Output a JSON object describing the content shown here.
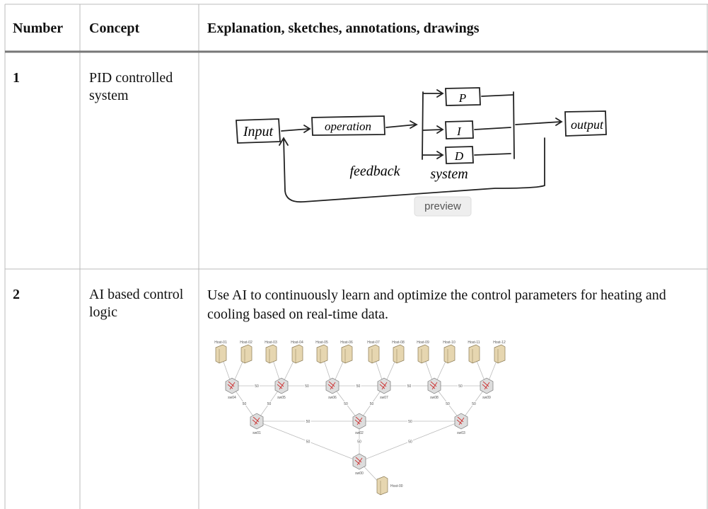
{
  "table": {
    "header": [
      "Number",
      "Concept",
      "Explanation, sketches, annotations, drawings"
    ],
    "rows": [
      {
        "number": "1",
        "concept": "PID controlled system",
        "sketch": {
          "labels": [
            "Input",
            "operation",
            "P",
            "I",
            "D",
            "output",
            "feedback",
            "system"
          ],
          "tooltip": "preview"
        }
      },
      {
        "number": "2",
        "concept": "AI based control logic",
        "text": "Use AI to continuously learn and optimize the control parameters for heating and cooling based on real-time data.",
        "diagram": {
          "nodes": [
            "Host-01",
            "Host-02",
            "Host-03",
            "Host-04",
            "Host-05",
            "Host-06",
            "Host-07",
            "Host-08",
            "Host-09",
            "Host-10",
            "Host-11",
            "Host-12",
            "sw04",
            "sw05",
            "sw06",
            "sw07",
            "sw08",
            "sw09",
            "sw01",
            "sw02",
            "sw03",
            "sw00",
            "Host-00"
          ],
          "links": [
            {
              "from": "Host-01",
              "to": "sw04"
            },
            {
              "from": "Host-02",
              "to": "sw04"
            },
            {
              "from": "Host-03",
              "to": "sw05"
            },
            {
              "from": "Host-04",
              "to": "sw05"
            },
            {
              "from": "Host-05",
              "to": "sw06"
            },
            {
              "from": "Host-06",
              "to": "sw06"
            },
            {
              "from": "Host-07",
              "to": "sw07"
            },
            {
              "from": "Host-08",
              "to": "sw07"
            },
            {
              "from": "Host-09",
              "to": "sw08"
            },
            {
              "from": "Host-10",
              "to": "sw08"
            },
            {
              "from": "Host-11",
              "to": "sw09"
            },
            {
              "from": "Host-12",
              "to": "sw09"
            },
            {
              "from": "sw04",
              "to": "sw05",
              "label": "50"
            },
            {
              "from": "sw05",
              "to": "sw06",
              "label": "50"
            },
            {
              "from": "sw06",
              "to": "sw07",
              "label": "50"
            },
            {
              "from": "sw07",
              "to": "sw08",
              "label": "50"
            },
            {
              "from": "sw08",
              "to": "sw09",
              "label": "50"
            },
            {
              "from": "sw04",
              "to": "sw01",
              "label": "50"
            },
            {
              "from": "sw05",
              "to": "sw01",
              "label": "50"
            },
            {
              "from": "sw06",
              "to": "sw02",
              "label": "50"
            },
            {
              "from": "sw07",
              "to": "sw02",
              "label": "50"
            },
            {
              "from": "sw08",
              "to": "sw03",
              "label": "50"
            },
            {
              "from": "sw09",
              "to": "sw03",
              "label": "50"
            },
            {
              "from": "sw01",
              "to": "sw02",
              "label": "50"
            },
            {
              "from": "sw02",
              "to": "sw03",
              "label": "50"
            },
            {
              "from": "sw01",
              "to": "sw00",
              "label": "50"
            },
            {
              "from": "sw02",
              "to": "sw00",
              "label": "50"
            },
            {
              "from": "sw03",
              "to": "sw00",
              "label": "50"
            },
            {
              "from": "sw00",
              "to": "Host-00"
            }
          ]
        }
      }
    ]
  }
}
